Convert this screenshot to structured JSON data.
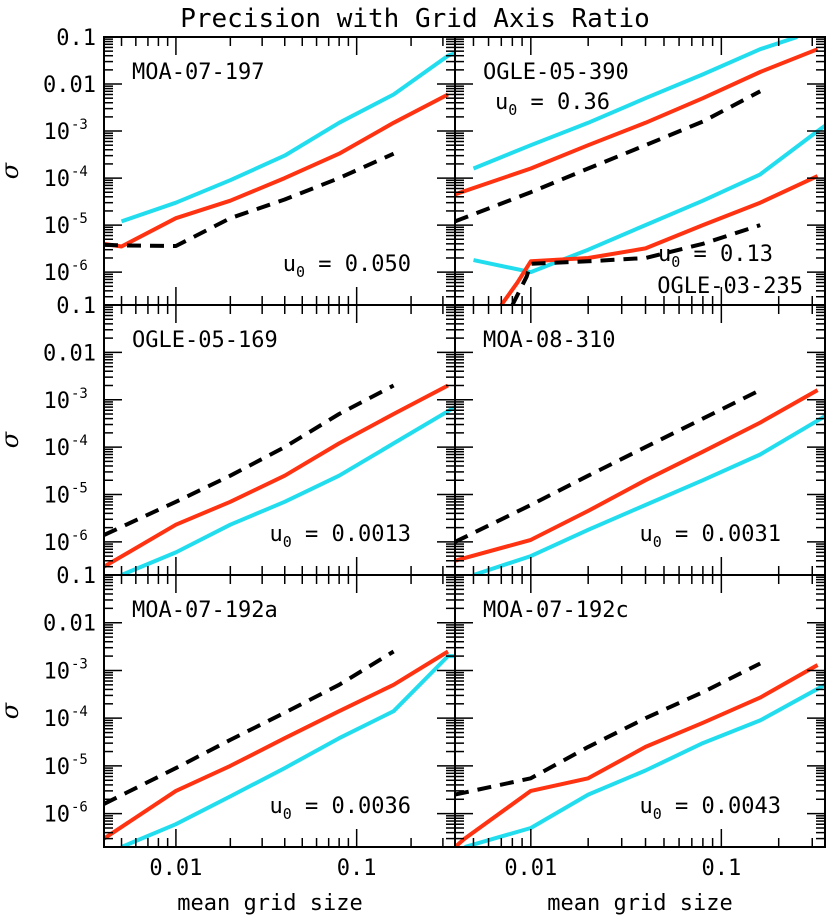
{
  "title": "Precision with Grid Axis Ratio",
  "xlabel": "mean grid size",
  "ylabel": "σ",
  "colors": {
    "red": "#ff3311",
    "cyan": "#22ddee",
    "black": "#000000"
  },
  "x_ticks": [
    "0.01",
    "0.1"
  ],
  "y_ticks": [
    {
      "base": "0.1",
      "exp": ""
    },
    {
      "base": "0.01",
      "exp": ""
    },
    {
      "base": "10",
      "exp": "-3"
    },
    {
      "base": "10",
      "exp": "-4"
    },
    {
      "base": "10",
      "exp": "-5"
    },
    {
      "base": "10",
      "exp": "-6"
    }
  ],
  "chart_data": [
    {
      "type": "line",
      "xscale": "log",
      "yscale": "log",
      "xlim": [
        0.004,
        0.35
      ],
      "ylim": [
        2e-07,
        0.1
      ],
      "labels": [
        {
          "text": "MOA-07-197",
          "pos": "top-left"
        }
      ],
      "u0": {
        "sym": "u",
        "sub": "0",
        "text": " = 0.050",
        "pos": "bottom-right"
      },
      "series": [
        {
          "color": "cyan",
          "style": "solid",
          "x": [
            0.005,
            0.01,
            0.02,
            0.04,
            0.08,
            0.16,
            0.32,
            0.35
          ],
          "y": [
            1.2e-05,
            3e-05,
            9e-05,
            0.0003,
            0.0015,
            0.006,
            0.04,
            0.045
          ]
        },
        {
          "color": "red",
          "style": "solid",
          "x": [
            0.004,
            0.005,
            0.01,
            0.02,
            0.04,
            0.08,
            0.16,
            0.32
          ],
          "y": [
            4e-06,
            3.5e-06,
            1.4e-05,
            3.3e-05,
            0.0001,
            0.00033,
            0.0015,
            0.006
          ]
        },
        {
          "color": "black",
          "style": "dashed",
          "x": [
            0.004,
            0.005,
            0.01,
            0.02,
            0.04,
            0.08,
            0.16
          ],
          "y": [
            3.8e-06,
            3.7e-06,
            3.6e-06,
            1.4e-05,
            3.5e-05,
            0.0001,
            0.00033
          ]
        }
      ]
    },
    {
      "type": "line",
      "xscale": "log",
      "yscale": "log",
      "xlim": [
        0.004,
        0.35
      ],
      "ylim": [
        2e-07,
        0.1
      ],
      "labels": [
        {
          "text": "OGLE-05-390",
          "pos": "top-left"
        },
        {
          "text": "OGLE-03-235",
          "pos": "bottom-right"
        }
      ],
      "u0": {
        "sym": "u",
        "sub": "0",
        "text": " = 0.36",
        "pos": "upper-left"
      },
      "u0_secondary": {
        "sym": "u",
        "sub": "0",
        "text": " = 0.13",
        "pos": "lower-right"
      },
      "series": [
        {
          "color": "cyan",
          "style": "solid",
          "x": [
            0.005,
            0.01,
            0.02,
            0.04,
            0.08,
            0.16,
            0.25
          ],
          "y": [
            0.00016,
            0.0005,
            0.0015,
            0.005,
            0.016,
            0.055,
            0.1
          ]
        },
        {
          "color": "red",
          "style": "solid",
          "x": [
            0.004,
            0.01,
            0.02,
            0.04,
            0.08,
            0.16,
            0.32
          ],
          "y": [
            4.5e-05,
            0.00016,
            0.0005,
            0.0015,
            0.005,
            0.018,
            0.055
          ]
        },
        {
          "color": "black",
          "style": "dashed",
          "x": [
            0.004,
            0.01,
            0.02,
            0.04,
            0.08,
            0.16
          ],
          "y": [
            1.2e-05,
            5e-05,
            0.00016,
            0.0005,
            0.0016,
            0.007
          ]
        },
        {
          "color": "cyan",
          "style": "solid",
          "x": [
            0.005,
            0.01,
            0.02,
            0.04,
            0.08,
            0.16,
            0.32,
            0.35
          ],
          "y": [
            1.8e-06,
            1e-06,
            3e-06,
            1e-05,
            3.3e-05,
            0.00012,
            0.001,
            0.0013
          ]
        },
        {
          "color": "red",
          "style": "solid",
          "x": [
            0.007,
            0.0085,
            0.01,
            0.02,
            0.04,
            0.08,
            0.16,
            0.32
          ],
          "y": [
            2e-07,
            6e-07,
            1.7e-06,
            2e-06,
            3.2e-06,
            1e-05,
            3e-05,
            0.00011
          ]
        },
        {
          "color": "black",
          "style": "dashed",
          "x": [
            0.008,
            0.0095,
            0.01,
            0.02,
            0.04,
            0.08,
            0.16
          ],
          "y": [
            2e-07,
            8e-07,
            1.5e-06,
            1.7e-06,
            2e-06,
            4e-06,
            1e-05
          ]
        }
      ]
    },
    {
      "type": "line",
      "xscale": "log",
      "yscale": "log",
      "xlim": [
        0.004,
        0.35
      ],
      "ylim": [
        2e-07,
        0.1
      ],
      "labels": [
        {
          "text": "OGLE-05-169",
          "pos": "top-left"
        }
      ],
      "u0": {
        "sym": "u",
        "sub": "0",
        "text": " = 0.0013",
        "pos": "bottom-right"
      },
      "series": [
        {
          "color": "black",
          "style": "dashed",
          "x": [
            0.004,
            0.01,
            0.02,
            0.04,
            0.08,
            0.16
          ],
          "y": [
            1.4e-06,
            7e-06,
            2.5e-05,
            0.0001,
            0.0005,
            0.002
          ]
        },
        {
          "color": "red",
          "style": "solid",
          "x": [
            0.004,
            0.01,
            0.02,
            0.04,
            0.08,
            0.16,
            0.32
          ],
          "y": [
            3e-07,
            2.3e-06,
            7e-06,
            2.5e-05,
            0.00012,
            0.0005,
            0.002
          ]
        },
        {
          "color": "cyan",
          "style": "solid",
          "x": [
            0.005,
            0.01,
            0.02,
            0.04,
            0.08,
            0.16,
            0.35
          ],
          "y": [
            2e-07,
            6e-07,
            2.3e-06,
            7e-06,
            2.5e-05,
            0.00012,
            0.0007
          ]
        }
      ]
    },
    {
      "type": "line",
      "xscale": "log",
      "yscale": "log",
      "xlim": [
        0.004,
        0.35
      ],
      "ylim": [
        2e-07,
        0.1
      ],
      "labels": [
        {
          "text": "MOA-08-310",
          "pos": "top-left"
        }
      ],
      "u0": {
        "sym": "u",
        "sub": "0",
        "text": " = 0.0031",
        "pos": "bottom-right"
      },
      "series": [
        {
          "color": "black",
          "style": "dashed",
          "x": [
            0.004,
            0.01,
            0.02,
            0.04,
            0.08,
            0.16
          ],
          "y": [
            1e-06,
            6e-06,
            2.5e-05,
            0.0001,
            0.0004,
            0.0016
          ]
        },
        {
          "color": "red",
          "style": "solid",
          "x": [
            0.004,
            0.01,
            0.02,
            0.04,
            0.08,
            0.16,
            0.32
          ],
          "y": [
            4e-07,
            1.1e-06,
            4.5e-06,
            2e-05,
            8e-05,
            0.00033,
            0.0016
          ]
        },
        {
          "color": "cyan",
          "style": "solid",
          "x": [
            0.005,
            0.01,
            0.02,
            0.04,
            0.08,
            0.16,
            0.35
          ],
          "y": [
            2e-07,
            5e-07,
            1.8e-06,
            6e-06,
            2e-05,
            7e-05,
            0.00045
          ]
        }
      ]
    },
    {
      "type": "line",
      "xscale": "log",
      "yscale": "log",
      "xlim": [
        0.004,
        0.35
      ],
      "ylim": [
        2e-07,
        0.1
      ],
      "labels": [
        {
          "text": "MOA-07-192a",
          "pos": "top-left"
        }
      ],
      "u0": {
        "sym": "u",
        "sub": "0",
        "text": " = 0.0036",
        "pos": "bottom-right"
      },
      "series": [
        {
          "color": "black",
          "style": "dashed",
          "x": [
            0.004,
            0.01,
            0.02,
            0.04,
            0.08,
            0.16
          ],
          "y": [
            1.6e-06,
            9e-06,
            3.5e-05,
            0.00013,
            0.0005,
            0.0025
          ]
        },
        {
          "color": "red",
          "style": "solid",
          "x": [
            0.004,
            0.01,
            0.02,
            0.04,
            0.08,
            0.16,
            0.32
          ],
          "y": [
            3e-07,
            3e-06,
            1e-05,
            3.8e-05,
            0.00014,
            0.0005,
            0.0025
          ]
        },
        {
          "color": "cyan",
          "style": "solid",
          "x": [
            0.005,
            0.01,
            0.02,
            0.04,
            0.08,
            0.16,
            0.32,
            0.35
          ],
          "y": [
            2e-07,
            6e-07,
            2.3e-06,
            9e-06,
            3.8e-05,
            0.00014,
            0.002,
            0.002
          ]
        }
      ]
    },
    {
      "type": "line",
      "xscale": "log",
      "yscale": "log",
      "xlim": [
        0.004,
        0.35
      ],
      "ylim": [
        2e-07,
        0.1
      ],
      "labels": [
        {
          "text": "MOA-07-192c",
          "pos": "top-left"
        }
      ],
      "u0": {
        "sym": "u",
        "sub": "0",
        "text": " = 0.0043",
        "pos": "bottom-right"
      },
      "series": [
        {
          "color": "black",
          "style": "dashed",
          "x": [
            0.004,
            0.01,
            0.02,
            0.04,
            0.08,
            0.16
          ],
          "y": [
            2.5e-06,
            5.5e-06,
            2.5e-05,
            0.0001,
            0.00035,
            0.0014
          ]
        },
        {
          "color": "red",
          "style": "solid",
          "x": [
            0.004,
            0.0045,
            0.01,
            0.02,
            0.04,
            0.08,
            0.16,
            0.32
          ],
          "y": [
            2e-07,
            3e-07,
            3e-06,
            5.5e-06,
            2.5e-05,
            8e-05,
            0.00027,
            0.0013
          ]
        },
        {
          "color": "cyan",
          "style": "solid",
          "x": [
            0.0045,
            0.01,
            0.02,
            0.04,
            0.08,
            0.16,
            0.35
          ],
          "y": [
            2e-07,
            5e-07,
            2.5e-06,
            8e-06,
            3e-05,
            9e-05,
            0.0005
          ]
        }
      ]
    }
  ]
}
